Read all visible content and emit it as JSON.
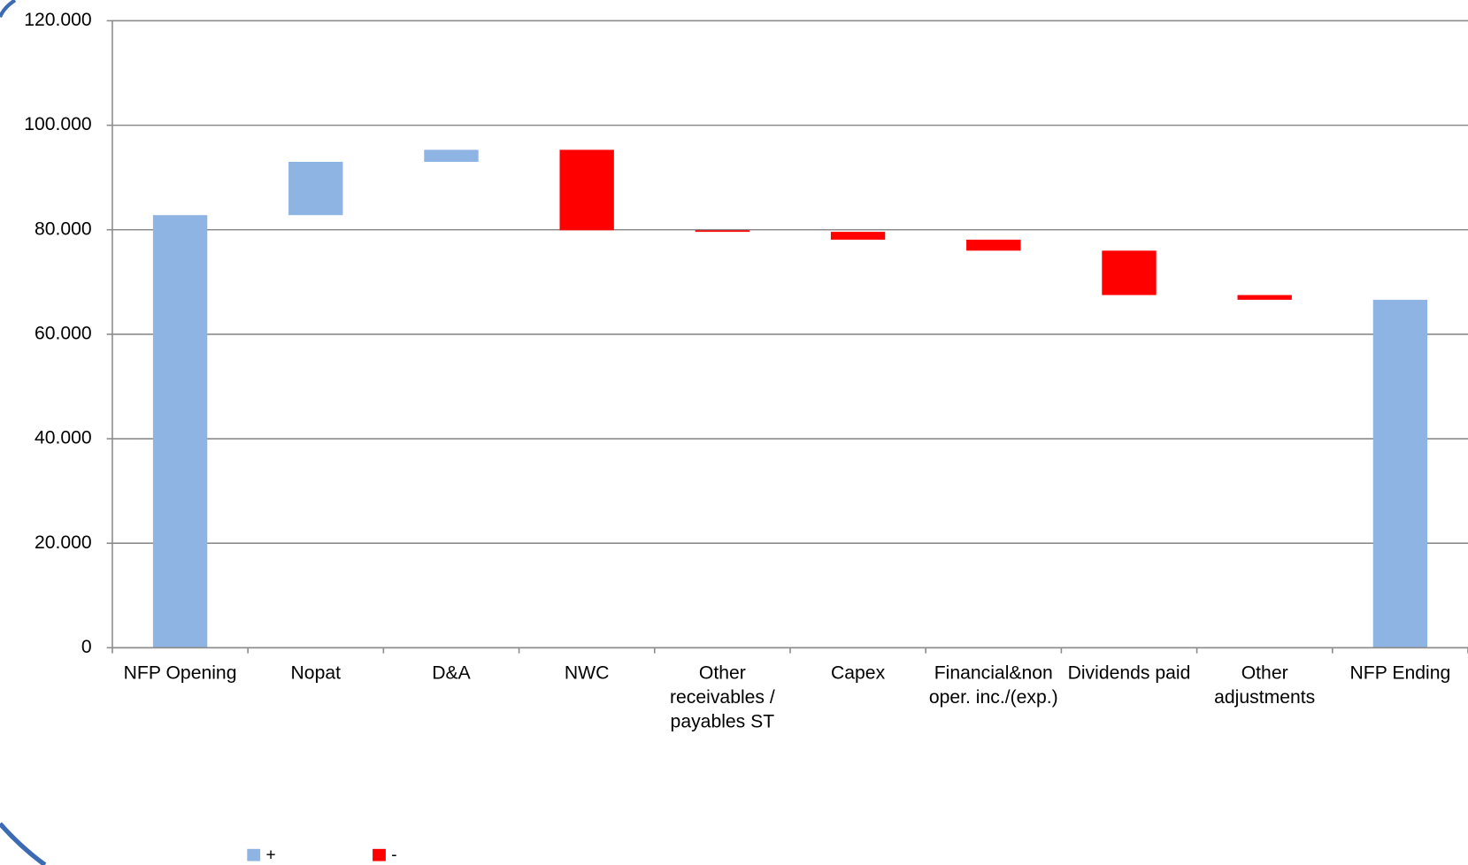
{
  "chart_data": {
    "type": "waterfall",
    "categories": [
      "NFP Opening",
      "Nopat",
      "D&A",
      "NWC",
      "Other receivables / payables ST",
      "Capex",
      "Financial&non oper. inc./(exp.)",
      "Dividends paid",
      "Other adjustments",
      "NFP Ending"
    ],
    "values": [
      82800,
      10200,
      2300,
      -15400,
      -300,
      -1500,
      -2100,
      -8500,
      -900,
      66600
    ],
    "is_total": [
      true,
      false,
      false,
      false,
      false,
      false,
      false,
      false,
      false,
      true
    ],
    "series": [
      {
        "name": "+",
        "color": "#8eb4e3"
      },
      {
        "name": "-",
        "color": "#ff0000"
      }
    ],
    "ylim": [
      0,
      120000
    ],
    "yticks": [
      0,
      {
        "value": 20000,
        "label": "20.000"
      },
      {
        "value": 40000,
        "label": "40.000"
      },
      {
        "value": 60000,
        "label": "60.000"
      },
      {
        "value": 80000,
        "label": "80.000"
      },
      {
        "value": 100000,
        "label": "100.000"
      },
      {
        "value": 120000,
        "label": "120.000"
      }
    ],
    "grid": true
  }
}
